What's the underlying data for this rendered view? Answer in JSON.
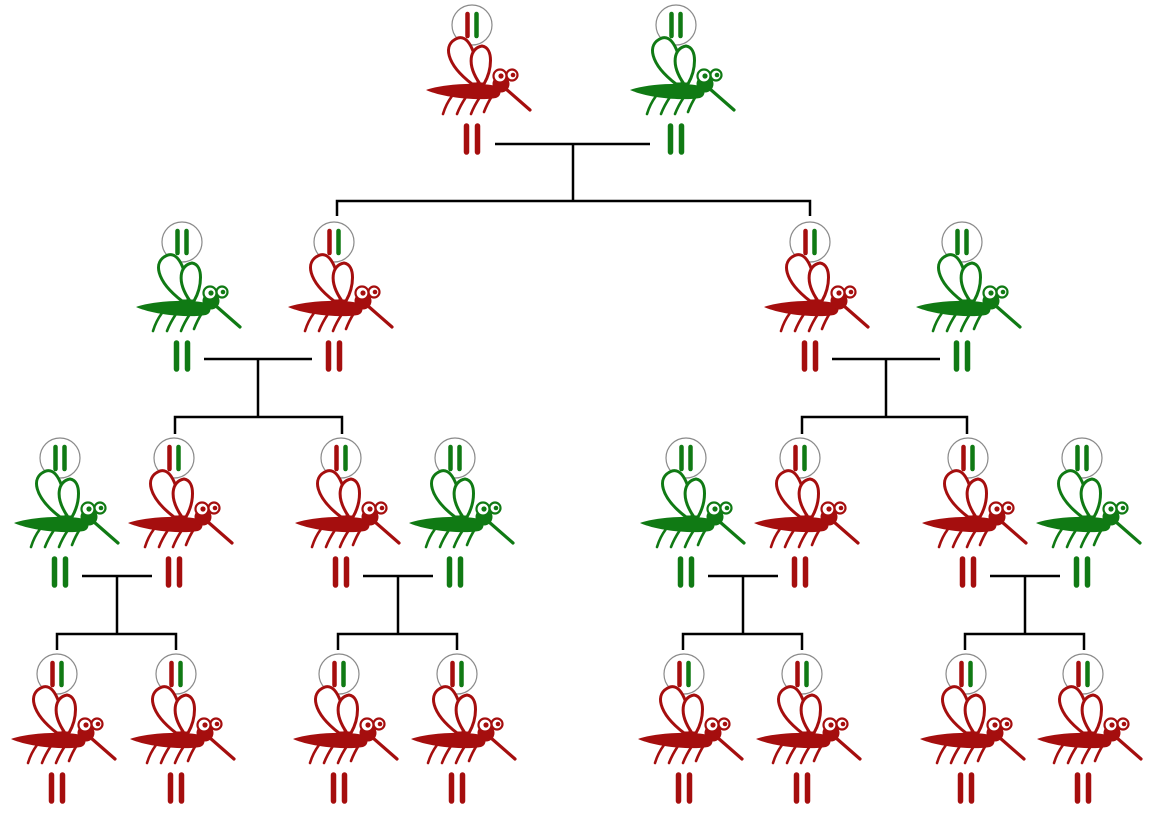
{
  "colors": {
    "red": "#a50e0e",
    "green": "#107a14",
    "line": "#000000",
    "circle_stroke": "#8a8a8a"
  },
  "icons": {
    "mosquito": "mosquito-icon",
    "inset_chromosomes": "chromosome-pair-inset",
    "bottom_chromosomes": "chromosome-pair-icon"
  },
  "generations": [
    {
      "generation": 1,
      "pairs": [
        {
          "a": {
            "color": "red",
            "inset": [
              "red",
              "green"
            ],
            "chromosomes": [
              "red",
              "red"
            ]
          },
          "b": {
            "color": "green",
            "inset": [
              "green",
              "green"
            ],
            "chromosomes": [
              "green",
              "green"
            ]
          }
        }
      ]
    },
    {
      "generation": 2,
      "pairs": [
        {
          "a": {
            "color": "green",
            "inset": [
              "green",
              "green"
            ],
            "chromosomes": [
              "green",
              "green"
            ]
          },
          "b": {
            "color": "red",
            "inset": [
              "red",
              "green"
            ],
            "chromosomes": [
              "red",
              "red"
            ]
          }
        },
        {
          "a": {
            "color": "red",
            "inset": [
              "red",
              "green"
            ],
            "chromosomes": [
              "red",
              "red"
            ]
          },
          "b": {
            "color": "green",
            "inset": [
              "green",
              "green"
            ],
            "chromosomes": [
              "green",
              "green"
            ]
          }
        }
      ]
    },
    {
      "generation": 3,
      "pairs": [
        {
          "a": {
            "color": "green",
            "inset": [
              "green",
              "green"
            ],
            "chromosomes": [
              "green",
              "green"
            ]
          },
          "b": {
            "color": "red",
            "inset": [
              "red",
              "green"
            ],
            "chromosomes": [
              "red",
              "red"
            ]
          }
        },
        {
          "a": {
            "color": "red",
            "inset": [
              "red",
              "green"
            ],
            "chromosomes": [
              "red",
              "red"
            ]
          },
          "b": {
            "color": "green",
            "inset": [
              "green",
              "green"
            ],
            "chromosomes": [
              "green",
              "green"
            ]
          }
        },
        {
          "a": {
            "color": "green",
            "inset": [
              "green",
              "green"
            ],
            "chromosomes": [
              "green",
              "green"
            ]
          },
          "b": {
            "color": "red",
            "inset": [
              "red",
              "green"
            ],
            "chromosomes": [
              "red",
              "red"
            ]
          }
        },
        {
          "a": {
            "color": "red",
            "inset": [
              "red",
              "green"
            ],
            "chromosomes": [
              "red",
              "red"
            ]
          },
          "b": {
            "color": "green",
            "inset": [
              "green",
              "green"
            ],
            "chromosomes": [
              "green",
              "green"
            ]
          }
        }
      ]
    },
    {
      "generation": 4,
      "offspring": [
        {
          "color": "red",
          "inset": [
            "red",
            "green"
          ],
          "chromosomes": [
            "red",
            "red"
          ]
        },
        {
          "color": "red",
          "inset": [
            "red",
            "green"
          ],
          "chromosomes": [
            "red",
            "red"
          ]
        },
        {
          "color": "red",
          "inset": [
            "red",
            "green"
          ],
          "chromosomes": [
            "red",
            "red"
          ]
        },
        {
          "color": "red",
          "inset": [
            "red",
            "green"
          ],
          "chromosomes": [
            "red",
            "red"
          ]
        },
        {
          "color": "red",
          "inset": [
            "red",
            "green"
          ],
          "chromosomes": [
            "red",
            "red"
          ]
        },
        {
          "color": "red",
          "inset": [
            "red",
            "green"
          ],
          "chromosomes": [
            "red",
            "red"
          ]
        },
        {
          "color": "red",
          "inset": [
            "red",
            "green"
          ],
          "chromosomes": [
            "red",
            "red"
          ]
        },
        {
          "color": "red",
          "inset": [
            "red",
            "green"
          ],
          "chromosomes": [
            "red",
            "red"
          ]
        }
      ]
    }
  ]
}
